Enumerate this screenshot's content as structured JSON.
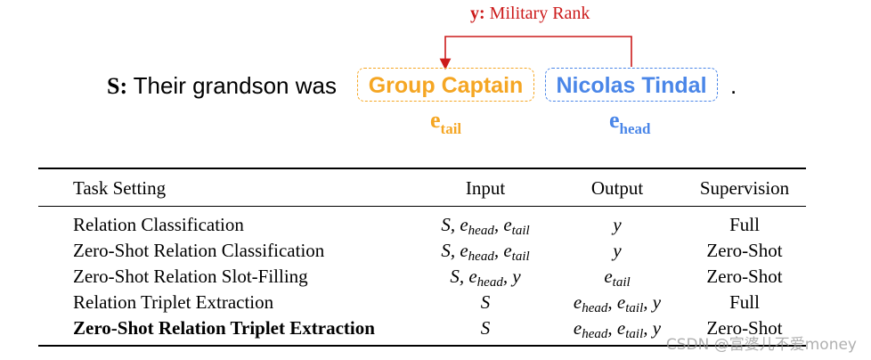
{
  "example": {
    "relation_var": "y:",
    "relation_name": "Military Rank",
    "sentence_var": "S:",
    "sentence_text": "Their grandson was",
    "tail_entity": "Group Captain",
    "head_entity": "Nicolas Tindal",
    "sentence_end": ".",
    "tail_symbol": "e",
    "tail_sub": "tail",
    "head_symbol": "e",
    "head_sub": "head",
    "colors": {
      "relation": "#cc1b1b",
      "tail": "#f5a623",
      "head": "#4a86e8"
    }
  },
  "table": {
    "headers": {
      "task": "Task Setting",
      "input": "Input",
      "output": "Output",
      "supervision": "Supervision"
    },
    "rows": [
      {
        "task": "Relation Classification",
        "supervision": "Full"
      },
      {
        "task": "Zero-Shot Relation Classification",
        "supervision": "Zero-Shot"
      },
      {
        "task": "Zero-Shot Relation Slot-Filling",
        "supervision": "Zero-Shot"
      },
      {
        "task": "Relation Triplet Extraction",
        "supervision": "Full"
      },
      {
        "task": "Zero-Shot Relation Triplet Extraction",
        "supervision": "Zero-Shot"
      }
    ]
  },
  "watermark": "CSDN @富婆儿不爱money"
}
